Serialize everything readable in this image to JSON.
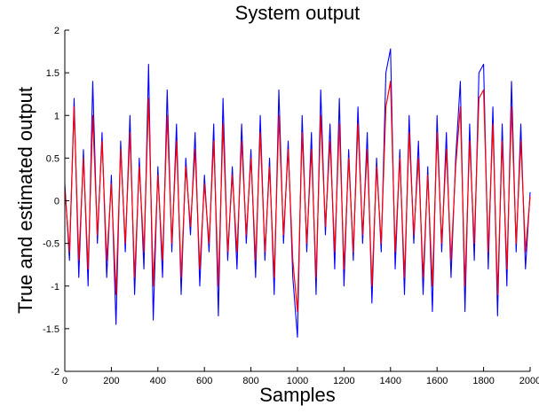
{
  "chart_data": {
    "type": "line",
    "title": "System output",
    "xlabel": "Samples",
    "ylabel": "True and estimated output",
    "xlim": [
      0,
      2000
    ],
    "ylim": [
      -2,
      2
    ],
    "xticks": [
      0,
      200,
      400,
      600,
      800,
      1000,
      1200,
      1400,
      1600,
      1800,
      2000
    ],
    "yticks": [
      -2,
      -1.5,
      -1,
      -0.5,
      0,
      0.5,
      1,
      1.5,
      2
    ],
    "xtick_labels": [
      "0",
      "200",
      "400",
      "600",
      "800",
      "1000",
      "1200",
      "1400",
      "1600",
      "1800",
      "2000"
    ],
    "ytick_labels": [
      "-2",
      "-1.5",
      "-1",
      "-0.5",
      "0",
      "0.5",
      "1",
      "1.5",
      "2"
    ],
    "grid": false,
    "legend": "none",
    "series": [
      {
        "color": "#0000ff",
        "x": [
          0,
          20,
          40,
          60,
          80,
          100,
          120,
          140,
          160,
          180,
          200,
          220,
          240,
          260,
          280,
          300,
          320,
          340,
          360,
          380,
          400,
          420,
          440,
          460,
          480,
          500,
          520,
          540,
          560,
          580,
          600,
          620,
          640,
          660,
          680,
          700,
          720,
          740,
          760,
          780,
          800,
          820,
          840,
          860,
          880,
          900,
          920,
          940,
          960,
          980,
          1000,
          1020,
          1040,
          1060,
          1080,
          1100,
          1120,
          1140,
          1160,
          1180,
          1200,
          1220,
          1240,
          1260,
          1280,
          1300,
          1320,
          1340,
          1360,
          1380,
          1400,
          1420,
          1440,
          1460,
          1480,
          1500,
          1520,
          1540,
          1560,
          1580,
          1600,
          1620,
          1640,
          1660,
          1680,
          1700,
          1720,
          1740,
          1760,
          1780,
          1800,
          1820,
          1840,
          1860,
          1880,
          1900,
          1920,
          1940,
          1960,
          1980,
          2000
        ],
        "values": [
          0.2,
          -0.7,
          1.2,
          -0.9,
          0.6,
          -1.0,
          1.4,
          -0.5,
          0.8,
          -0.9,
          0.3,
          -1.45,
          0.7,
          -0.6,
          1.0,
          -1.1,
          0.5,
          -0.8,
          1.6,
          -1.4,
          0.4,
          -0.9,
          1.3,
          -0.6,
          0.9,
          -1.1,
          0.5,
          -0.4,
          0.8,
          -1.0,
          0.3,
          -0.6,
          0.9,
          -1.35,
          1.2,
          -0.7,
          0.4,
          -0.8,
          0.9,
          -0.5,
          0.6,
          -0.9,
          1.0,
          -0.7,
          0.5,
          -1.1,
          1.3,
          -0.5,
          0.7,
          -0.9,
          -1.6,
          1.0,
          -0.6,
          0.8,
          -1.1,
          1.3,
          -0.4,
          0.9,
          -0.8,
          1.2,
          -1.0,
          0.6,
          -0.7,
          1.1,
          -0.5,
          0.8,
          -1.2,
          0.5,
          -0.6,
          1.5,
          1.78,
          -0.8,
          0.6,
          -1.1,
          1.0,
          -0.5,
          0.7,
          -1.1,
          0.4,
          -1.3,
          1.0,
          -0.6,
          0.8,
          -0.9,
          0.5,
          1.4,
          -1.3,
          0.9,
          -0.7,
          1.5,
          1.6,
          -0.8,
          1.1,
          -1.35,
          0.9,
          -1.0,
          1.4,
          -0.6,
          0.9,
          -0.8,
          0.1
        ]
      },
      {
        "color": "#ff0000",
        "x": [
          0,
          20,
          40,
          60,
          80,
          100,
          120,
          140,
          160,
          180,
          200,
          220,
          240,
          260,
          280,
          300,
          320,
          340,
          360,
          380,
          400,
          420,
          440,
          460,
          480,
          500,
          520,
          540,
          560,
          580,
          600,
          620,
          640,
          660,
          680,
          700,
          720,
          740,
          760,
          780,
          800,
          820,
          840,
          860,
          880,
          900,
          920,
          940,
          960,
          980,
          1000,
          1020,
          1040,
          1060,
          1080,
          1100,
          1120,
          1140,
          1160,
          1180,
          1200,
          1220,
          1240,
          1260,
          1280,
          1300,
          1320,
          1340,
          1360,
          1380,
          1400,
          1420,
          1440,
          1460,
          1480,
          1500,
          1520,
          1540,
          1560,
          1580,
          1600,
          1620,
          1640,
          1660,
          1680,
          1700,
          1720,
          1740,
          1760,
          1780,
          1800,
          1820,
          1840,
          1860,
          1880,
          1900,
          1920,
          1940,
          1960,
          1980,
          2000
        ],
        "values": [
          0.15,
          -0.6,
          1.1,
          -0.7,
          0.5,
          -0.8,
          1.0,
          -0.4,
          0.7,
          -0.7,
          0.2,
          -1.1,
          0.6,
          -0.5,
          0.8,
          -0.9,
          0.4,
          -0.6,
          1.2,
          -1.0,
          0.3,
          -0.7,
          1.0,
          -0.5,
          0.7,
          -0.9,
          0.4,
          -0.3,
          0.6,
          -0.8,
          0.2,
          -0.5,
          0.7,
          -1.0,
          0.9,
          -0.6,
          0.3,
          -0.6,
          0.7,
          -0.4,
          0.5,
          -0.7,
          0.8,
          -0.6,
          0.4,
          -0.9,
          1.0,
          -0.4,
          0.6,
          -0.7,
          -1.3,
          0.8,
          -0.5,
          0.6,
          -0.9,
          1.0,
          -0.3,
          0.7,
          -0.6,
          0.9,
          -0.8,
          0.5,
          -0.6,
          0.9,
          -0.4,
          0.6,
          -1.0,
          0.4,
          -0.5,
          1.1,
          1.4,
          -0.6,
          0.5,
          -0.9,
          0.8,
          -0.4,
          0.5,
          -0.9,
          0.3,
          -1.0,
          0.8,
          -0.5,
          0.6,
          -0.7,
          0.4,
          1.1,
          -1.0,
          0.7,
          -0.5,
          1.2,
          1.3,
          -0.6,
          0.9,
          -1.1,
          0.7,
          -0.8,
          1.1,
          -0.5,
          0.7,
          -0.6,
          0.05
        ]
      }
    ]
  }
}
